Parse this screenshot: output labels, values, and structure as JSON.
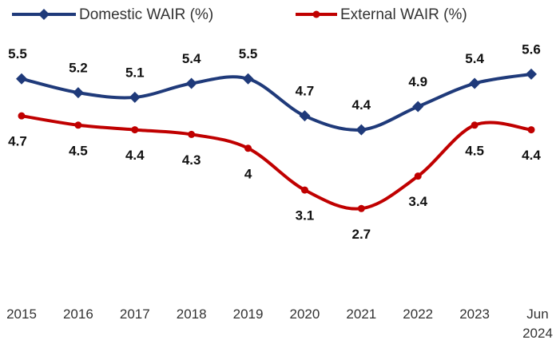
{
  "chart_data": {
    "type": "line",
    "categories": [
      "2015",
      "2016",
      "2017",
      "2018",
      "2019",
      "2020",
      "2021",
      "2022",
      "2023",
      "Jun 2024"
    ],
    "series": [
      {
        "name": "Domestic WAIR (%)",
        "color": "#1f3a7a",
        "marker": "diamond",
        "values": [
          5.5,
          5.2,
          5.1,
          5.4,
          5.5,
          4.7,
          4.4,
          4.9,
          5.4,
          5.6
        ]
      },
      {
        "name": "External WAIR (%)",
        "color": "#c00000",
        "marker": "circle",
        "values": [
          4.7,
          4.5,
          4.4,
          4.3,
          4.0,
          3.1,
          2.7,
          3.4,
          4.5,
          4.4
        ]
      }
    ],
    "ylim": [
      1,
      7.2
    ],
    "legend": "top",
    "smooth": true
  }
}
